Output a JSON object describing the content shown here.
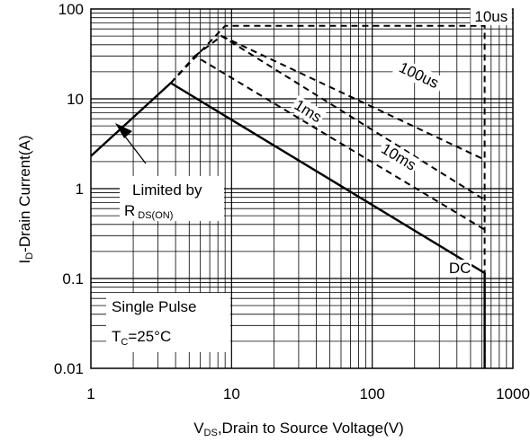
{
  "chart_data": {
    "type": "line",
    "x_scale": "log",
    "y_scale": "log",
    "xlim": [
      1,
      1000
    ],
    "ylim": [
      0.01,
      100
    ],
    "grid": true,
    "xlabel": {
      "prefix": "V",
      "sub": "DS",
      "suffix": ",Drain to Source Voltage(V)"
    },
    "ylabel": {
      "prefix": "I",
      "sub": "D",
      "suffix": "-Drain Current(A)"
    },
    "x_ticks": [
      {
        "value": 1,
        "label": "1"
      },
      {
        "value": 10,
        "label": "10"
      },
      {
        "value": 100,
        "label": "100"
      },
      {
        "value": 1000,
        "label": "1000"
      }
    ],
    "y_ticks": [
      {
        "value": 100,
        "label": "100"
      },
      {
        "value": 10,
        "label": "10"
      },
      {
        "value": 1,
        "label": "1"
      },
      {
        "value": 0.1,
        "label": "0.1"
      },
      {
        "value": 0.01,
        "label": "0.01"
      }
    ],
    "series": [
      {
        "name": "DC",
        "style": "solid",
        "label_anchor": [
          420,
          0.12
        ],
        "points": [
          [
            1,
            2.3
          ],
          [
            3.7,
            15
          ],
          [
            630,
            0.115
          ],
          [
            630,
            0.01
          ]
        ]
      },
      {
        "name": "10ms",
        "style": "dashed",
        "label_anchor": [
          150,
          2.1
        ],
        "points": [
          [
            3.7,
            15
          ],
          [
            5.5,
            30
          ],
          [
            630,
            0.35
          ]
        ]
      },
      {
        "name": "1ms",
        "style": "dashed",
        "label_anchor": [
          34,
          6.8
        ],
        "points": [
          [
            5.5,
            30
          ],
          [
            8.5,
            50
          ],
          [
            630,
            0.75
          ]
        ]
      },
      {
        "name": "100us",
        "style": "dashed",
        "label_anchor": [
          210,
          17
        ],
        "points": [
          [
            8.5,
            50
          ],
          [
            630,
            2.1
          ]
        ]
      },
      {
        "name": "10us",
        "style": "dashed",
        "label_anchor": [
          700,
          76
        ],
        "points": [
          [
            3.7,
            15
          ],
          [
            9,
            65
          ],
          [
            630,
            65
          ],
          [
            630,
            0.01
          ]
        ]
      }
    ],
    "annotations": {
      "limited_by": {
        "line1": "Limited by",
        "prefix": "R",
        "sub": "DS(ON)"
      },
      "pulse": {
        "line1": "Single Pulse",
        "prefix": "T",
        "sub": "C",
        "suffix": "=25°C"
      }
    }
  }
}
